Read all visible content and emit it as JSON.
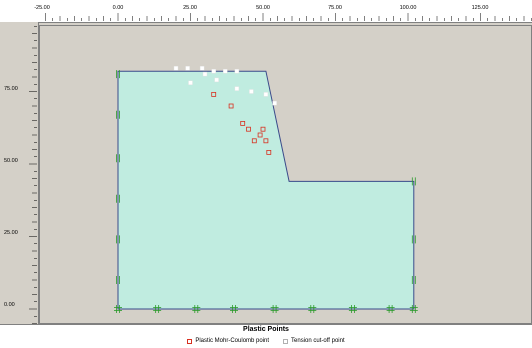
{
  "title": "Plastic Points",
  "legend": {
    "mohr_coulomb": "Plastic Mohr-Coulomb point",
    "tension_cutoff": "Tension cut-off point"
  },
  "rulers": {
    "x_ticks": [
      "-25.00",
      "0.00",
      "25.00",
      "50.00",
      "75.00",
      "100.00",
      "125.00"
    ],
    "y_ticks": [
      "75.00",
      "50.00",
      "25.00",
      "0.00"
    ]
  },
  "colors": {
    "soil_fill": "#c0ece0",
    "soil_edge": "#3a4a8a",
    "mohr_coulomb": "#d83020",
    "tension_cutoff": "#ffffff",
    "fixity": "#2a9a2a",
    "background": "#d4d0c8"
  },
  "geometry": {
    "outline": [
      [
        0,
        0
      ],
      [
        0,
        82
      ],
      [
        51,
        82
      ],
      [
        59,
        44
      ],
      [
        102,
        44
      ],
      [
        102,
        0
      ]
    ]
  },
  "points": {
    "tension_cutoff": [
      [
        20,
        83
      ],
      [
        24,
        83
      ],
      [
        29,
        83
      ],
      [
        33,
        82
      ],
      [
        37,
        82
      ],
      [
        41,
        82
      ],
      [
        25,
        78
      ],
      [
        30,
        81
      ],
      [
        34,
        79
      ],
      [
        41,
        76
      ],
      [
        46,
        75
      ],
      [
        51,
        74
      ],
      [
        54,
        71
      ]
    ],
    "mohr_coulomb": [
      [
        33,
        74
      ],
      [
        39,
        70
      ],
      [
        43,
        64
      ],
      [
        45,
        62
      ],
      [
        47,
        58
      ],
      [
        49,
        60
      ],
      [
        50,
        62
      ],
      [
        51,
        58
      ],
      [
        52,
        54
      ]
    ]
  }
}
